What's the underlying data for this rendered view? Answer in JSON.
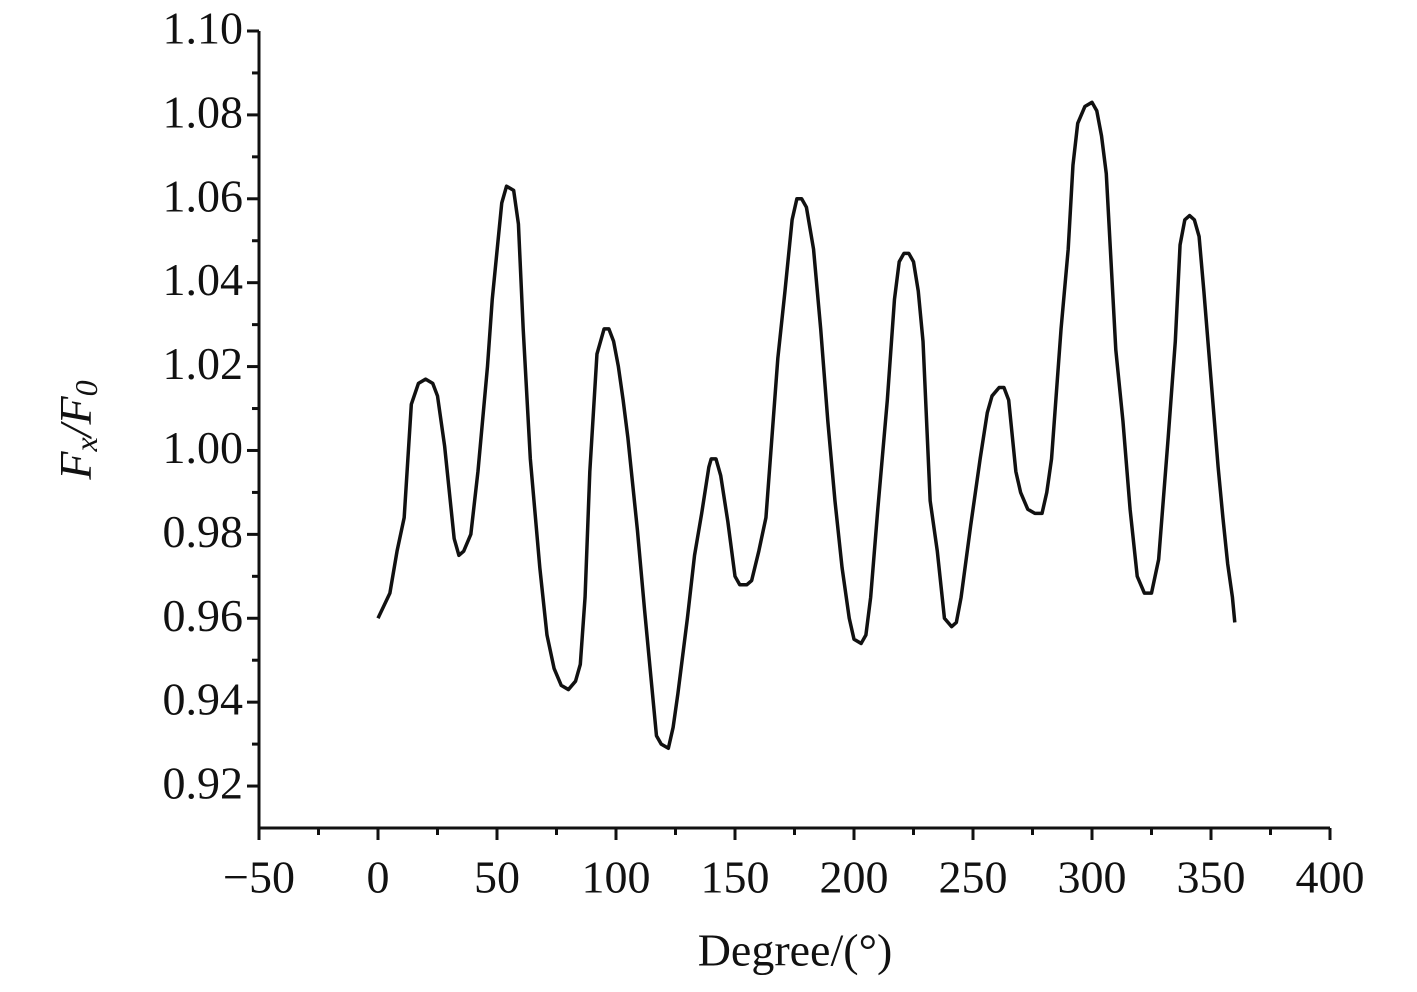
{
  "chart_data": {
    "type": "line",
    "x_label": "Degree/(°)",
    "y_label": [
      {
        "text": "F",
        "sub": false
      },
      {
        "text": "x",
        "sub": true
      },
      {
        "text": "/",
        "sub": false
      },
      {
        "text": "F",
        "sub": false
      },
      {
        "text": "0",
        "sub": true
      }
    ],
    "xlim": [
      -50,
      400
    ],
    "xticks": [
      {
        "value": -50,
        "label": "−50"
      },
      0,
      50,
      100,
      150,
      200,
      250,
      300,
      350,
      400
    ],
    "ylim": [
      0.91,
      1.1
    ],
    "yticks": [
      0.92,
      0.94,
      0.96,
      0.98,
      {
        "value": 1.0,
        "label": "1.00"
      },
      1.02,
      1.04,
      1.06,
      1.08,
      {
        "value": 1.1,
        "label": "1.10"
      }
    ],
    "minor_ticks": true,
    "grid": false,
    "series": [
      {
        "color": "#111111",
        "x": [
          0,
          5,
          8,
          11,
          14,
          17,
          20,
          23,
          25,
          28,
          32,
          34,
          36,
          39,
          42,
          46,
          48,
          52,
          54,
          57,
          59,
          61,
          64,
          68,
          71,
          74,
          77,
          80,
          83,
          85,
          87,
          89,
          92,
          95,
          97,
          99,
          101,
          103,
          105,
          109,
          112,
          115,
          117,
          119,
          122,
          124,
          126,
          130,
          133,
          136,
          139,
          140,
          142,
          144,
          147,
          150,
          152,
          155,
          157,
          160,
          163,
          168,
          171,
          174,
          176,
          178,
          180,
          183,
          186,
          189,
          192,
          195,
          198,
          200,
          203,
          205,
          207,
          210,
          214,
          217,
          219,
          221,
          223,
          225,
          227,
          229,
          232,
          235,
          238,
          241,
          243,
          245,
          249,
          253,
          256,
          258,
          261,
          263,
          265,
          268,
          270,
          273,
          276,
          279,
          281,
          283,
          287,
          290,
          292,
          294,
          297,
          300,
          302,
          304,
          306,
          310,
          313,
          316,
          319,
          322,
          325,
          328,
          332,
          335,
          337,
          339,
          341,
          343,
          345,
          347,
          350,
          353,
          355,
          357,
          359,
          360
        ],
        "values": [
          0.96,
          0.966,
          0.976,
          0.984,
          1.011,
          1.016,
          1.017,
          1.016,
          1.013,
          1.001,
          0.979,
          0.975,
          0.976,
          0.98,
          0.995,
          1.02,
          1.036,
          1.059,
          1.063,
          1.062,
          1.054,
          1.029,
          0.998,
          0.972,
          0.956,
          0.948,
          0.944,
          0.943,
          0.945,
          0.949,
          0.965,
          0.995,
          1.023,
          1.029,
          1.029,
          1.026,
          1.02,
          1.012,
          1.003,
          0.981,
          0.962,
          0.944,
          0.932,
          0.93,
          0.929,
          0.934,
          0.942,
          0.96,
          0.975,
          0.985,
          0.996,
          0.998,
          0.998,
          0.994,
          0.983,
          0.97,
          0.968,
          0.968,
          0.969,
          0.976,
          0.984,
          1.022,
          1.038,
          1.055,
          1.06,
          1.06,
          1.058,
          1.048,
          1.029,
          1.007,
          0.988,
          0.972,
          0.96,
          0.955,
          0.954,
          0.956,
          0.965,
          0.986,
          1.012,
          1.036,
          1.045,
          1.047,
          1.047,
          1.045,
          1.038,
          1.026,
          0.988,
          0.976,
          0.96,
          0.958,
          0.959,
          0.965,
          0.982,
          0.998,
          1.009,
          1.013,
          1.015,
          1.015,
          1.012,
          0.995,
          0.99,
          0.986,
          0.985,
          0.985,
          0.99,
          0.998,
          1.029,
          1.048,
          1.068,
          1.078,
          1.082,
          1.083,
          1.081,
          1.075,
          1.066,
          1.024,
          1.007,
          0.986,
          0.97,
          0.966,
          0.966,
          0.974,
          1.003,
          1.026,
          1.049,
          1.055,
          1.056,
          1.055,
          1.051,
          1.038,
          1.017,
          0.996,
          0.984,
          0.973,
          0.965,
          0.959
        ]
      }
    ]
  }
}
